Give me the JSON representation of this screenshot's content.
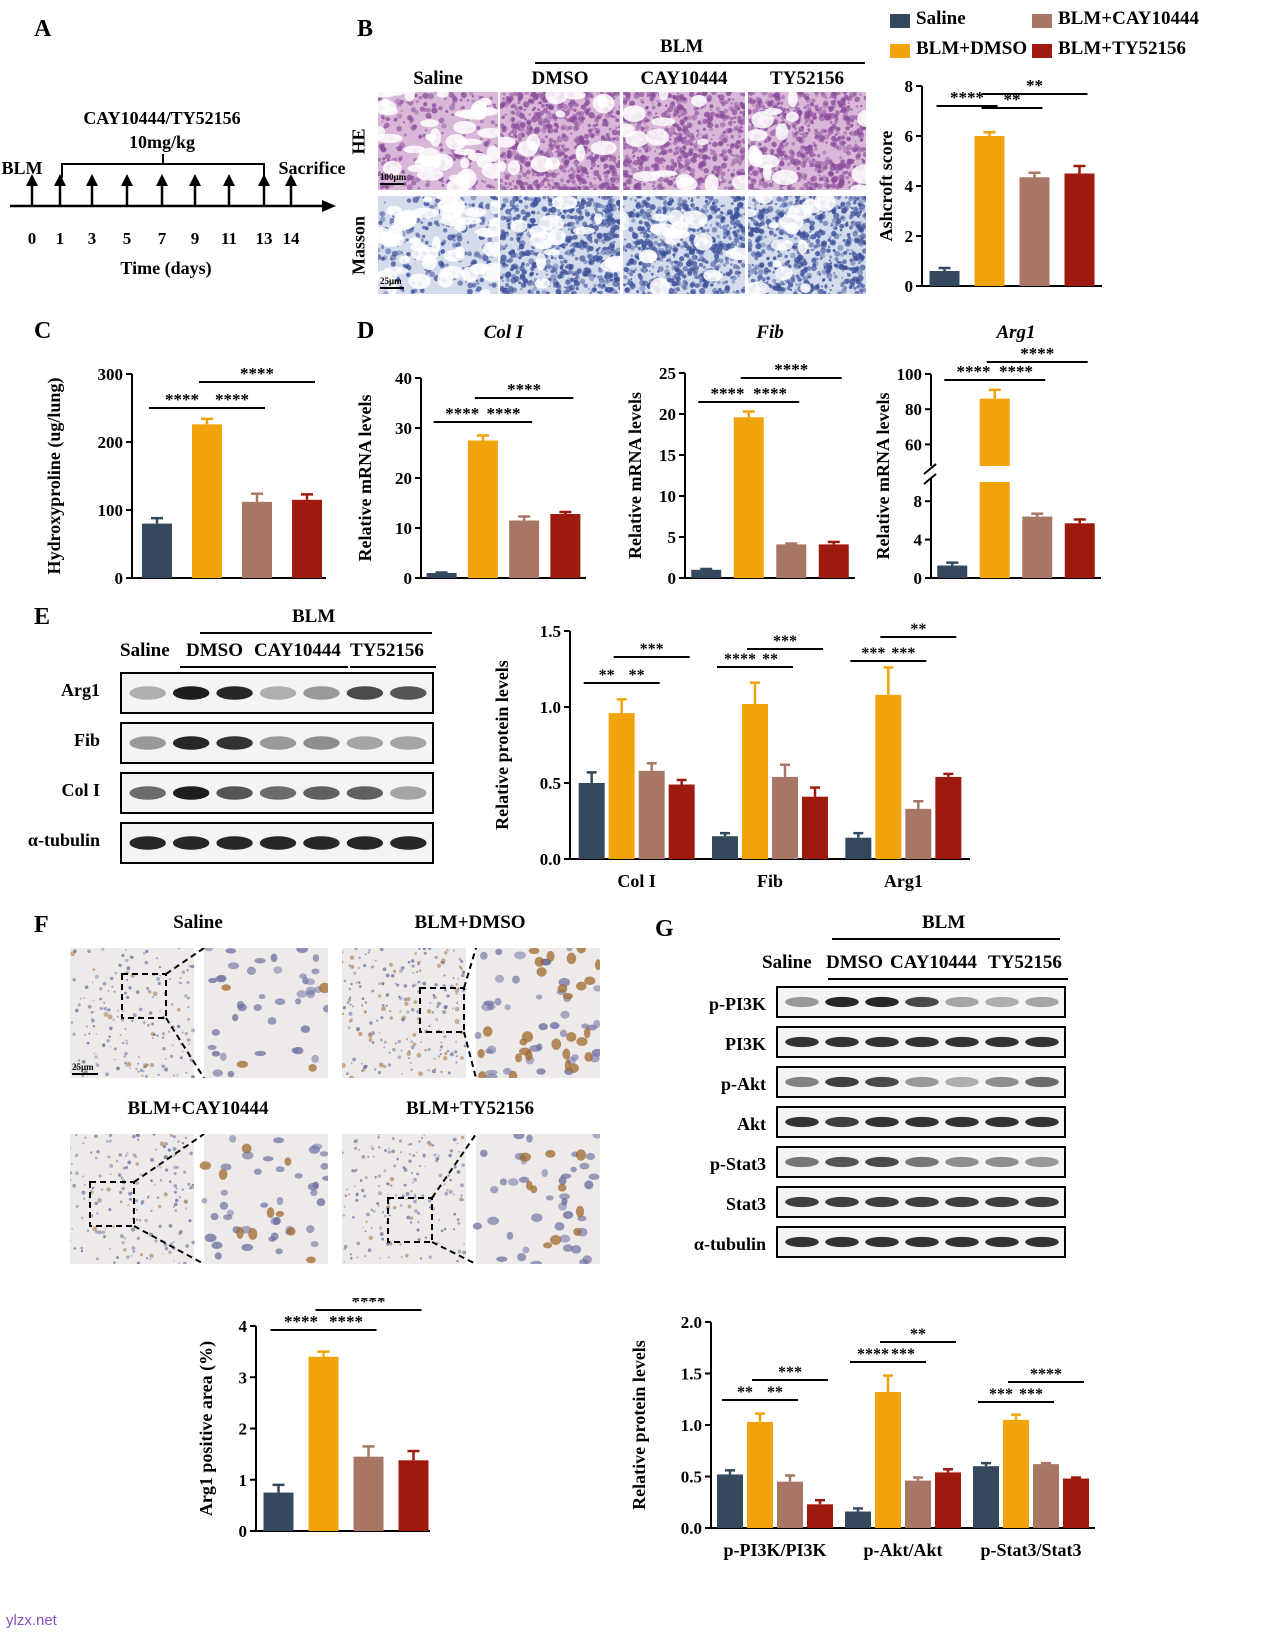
{
  "panel_letters": [
    "A",
    "B",
    "C",
    "D",
    "E",
    "F",
    "G"
  ],
  "colors": {
    "saline": "#34495e",
    "dmso": "#f0a30a",
    "cay": "#a87664",
    "ty": "#9e1a0f",
    "he_bg": "#d9b7d8",
    "he_tissue": "#8a4c9a",
    "masson_bg": "#d4dceb",
    "masson_tissue": "#3b4f9a",
    "ihc_bg": "#eeeaea",
    "ihc_cell": "#6b6fa0",
    "ihc_brown": "#a06a2c"
  },
  "legend": [
    {
      "label": "Saline",
      "color": "#34495e"
    },
    {
      "label": "BLM+CAY10444",
      "color": "#a87664"
    },
    {
      "label": "BLM+DMSO",
      "color": "#f0a30a"
    },
    {
      "label": "BLM+TY52156",
      "color": "#9e1a0f"
    }
  ],
  "timeline": {
    "drug_label": "CAY10444/TY52156",
    "dose_label": "10mg/kg",
    "start_label": "BLM",
    "end_label": "Sacrifice",
    "ticks": [
      "0",
      "1",
      "3",
      "5",
      "7",
      "9",
      "11",
      "13",
      "14"
    ],
    "axis_label": "Time (days)"
  },
  "histology": {
    "blm_label": "BLM",
    "columns": [
      "Saline",
      "DMSO",
      "CAY10444",
      "TY52156"
    ],
    "rows": [
      "HE",
      "Masson"
    ],
    "scalebars": [
      "100μm",
      "25μm"
    ]
  },
  "ihc": {
    "panels": [
      "Saline",
      "BLM+DMSO",
      "BLM+CAY10444",
      "BLM+TY52156"
    ],
    "scalebar": "25μm"
  },
  "blots": {
    "E": {
      "blm_label": "BLM",
      "groups": [
        "Saline",
        "DMSO",
        "CAY10444",
        "TY52156"
      ],
      "rows": [
        "Arg1",
        "Fib",
        "Col I",
        "α-tubulin"
      ]
    },
    "G": {
      "blm_label": "BLM",
      "groups": [
        "Saline",
        "DMSO",
        "CAY10444",
        "TY52156"
      ],
      "rows": [
        "p-PI3K",
        "PI3K",
        "p-Akt",
        "Akt",
        "p-Stat3",
        "Stat3",
        "α-tubulin"
      ]
    }
  },
  "chart_data": [
    {
      "id": "B",
      "type": "bar",
      "title": "",
      "ylabel": "Ashcroft score",
      "ylim": [
        0,
        8
      ],
      "yticks": [
        "0",
        "2",
        "4",
        "6",
        "8"
      ],
      "categories": [
        "Saline",
        "BLM+DMSO",
        "BLM+CAY10444",
        "BLM+TY52156"
      ],
      "values": [
        0.6,
        6.0,
        4.35,
        4.5
      ],
      "errors": [
        0.12,
        0.15,
        0.18,
        0.3
      ],
      "annotations": [
        "****",
        "**",
        "**"
      ]
    },
    {
      "id": "C",
      "type": "bar",
      "title": "",
      "ylabel": "Hydroxyproline (ug/lung)",
      "ylim": [
        0,
        300
      ],
      "yticks": [
        "0",
        "100",
        "200",
        "300"
      ],
      "categories": [
        "Saline",
        "BLM+DMSO",
        "BLM+CAY10444",
        "BLM+TY52156"
      ],
      "values": [
        80,
        226,
        112,
        115
      ],
      "errors": [
        8,
        8,
        12,
        8
      ],
      "annotations": [
        "****",
        "****",
        "****"
      ]
    },
    {
      "id": "D1",
      "type": "bar",
      "title": "Col I",
      "ylabel": "Relative mRNA levels",
      "ylim": [
        0,
        40
      ],
      "yticks": [
        "0",
        "10",
        "20",
        "30",
        "40"
      ],
      "categories": [
        "Saline",
        "BLM+DMSO",
        "BLM+CAY10444",
        "BLM+TY52156"
      ],
      "values": [
        1,
        27.5,
        11.5,
        12.8
      ],
      "errors": [
        0.1,
        1,
        0.8,
        0.4
      ],
      "annotations": [
        "****",
        "****",
        "****"
      ]
    },
    {
      "id": "D2",
      "type": "bar",
      "title": "Fib",
      "ylabel": "Relative mRNA levels",
      "ylim": [
        0,
        25
      ],
      "yticks": [
        "0",
        "5",
        "10",
        "15",
        "20",
        "25"
      ],
      "categories": [
        "Saline",
        "BLM+DMSO",
        "BLM+CAY10444",
        "BLM+TY52156"
      ],
      "values": [
        1,
        19.6,
        4.1,
        4.1
      ],
      "errors": [
        0.1,
        0.7,
        0.1,
        0.3
      ],
      "annotations": [
        "****",
        "****",
        "****"
      ]
    },
    {
      "id": "D3",
      "type": "bar",
      "title": "Arg1",
      "ylabel": "Relative mRNA levels",
      "ybreak": true,
      "yticks": [
        "0",
        "4",
        "8",
        "60",
        "80",
        "100"
      ],
      "categories": [
        "Saline",
        "BLM+DMSO",
        "BLM+CAY10444",
        "BLM+TY52156"
      ],
      "values": [
        1.3,
        86,
        6.4,
        5.7
      ],
      "errors": [
        0.3,
        5,
        0.3,
        0.4
      ],
      "annotations": [
        "****",
        "****",
        "****"
      ]
    },
    {
      "id": "E",
      "type": "bar",
      "title": "",
      "ylabel": "Relative protein levels",
      "ylim": [
        0,
        1.5
      ],
      "yticks": [
        "0.0",
        "0.5",
        "1.0",
        "1.5"
      ],
      "categories": [
        "Col I",
        "Fib",
        "Arg1"
      ],
      "series": [
        {
          "name": "Saline",
          "values": [
            0.5,
            0.15,
            0.14
          ],
          "errors": [
            0.07,
            0.02,
            0.03
          ]
        },
        {
          "name": "BLM+DMSO",
          "values": [
            0.96,
            1.02,
            1.08
          ],
          "errors": [
            0.09,
            0.14,
            0.18
          ]
        },
        {
          "name": "BLM+CAY10444",
          "values": [
            0.58,
            0.54,
            0.33
          ],
          "errors": [
            0.05,
            0.08,
            0.05
          ]
        },
        {
          "name": "BLM+TY52156",
          "values": [
            0.49,
            0.41,
            0.54
          ],
          "errors": [
            0.03,
            0.06,
            0.02
          ]
        }
      ],
      "annotations": [
        [
          "**",
          "**",
          "***"
        ],
        [
          "****",
          "**",
          "***"
        ],
        [
          "***",
          "***",
          "**"
        ]
      ]
    },
    {
      "id": "F",
      "type": "bar",
      "title": "",
      "ylabel": "Arg1 positive area (%)",
      "ylim": [
        0,
        4
      ],
      "yticks": [
        "0",
        "1",
        "2",
        "3",
        "4"
      ],
      "categories": [
        "Saline",
        "BLM+DMSO",
        "BLM+CAY10444",
        "BLM+TY52156"
      ],
      "values": [
        0.75,
        3.4,
        1.45,
        1.38
      ],
      "errors": [
        0.15,
        0.1,
        0.2,
        0.18
      ],
      "annotations": [
        "****",
        "****",
        "****"
      ]
    },
    {
      "id": "G",
      "type": "bar",
      "title": "",
      "ylabel": "Relative protein levels",
      "ylim": [
        0,
        2.0
      ],
      "yticks": [
        "0.0",
        "0.5",
        "1.0",
        "1.5",
        "2.0"
      ],
      "categories": [
        "p-PI3K/PI3K",
        "p-Akt/Akt",
        "p-Stat3/Stat3"
      ],
      "series": [
        {
          "name": "Saline",
          "values": [
            0.52,
            0.16,
            0.6
          ],
          "errors": [
            0.04,
            0.03,
            0.03
          ]
        },
        {
          "name": "BLM+DMSO",
          "values": [
            1.03,
            1.32,
            1.05
          ],
          "errors": [
            0.08,
            0.16,
            0.05
          ]
        },
        {
          "name": "BLM+CAY10444",
          "values": [
            0.45,
            0.46,
            0.62
          ],
          "errors": [
            0.06,
            0.03,
            0.01
          ]
        },
        {
          "name": "BLM+TY52156",
          "values": [
            0.23,
            0.54,
            0.48
          ],
          "errors": [
            0.04,
            0.03,
            0.01
          ]
        }
      ],
      "annotations": [
        [
          "**",
          "**",
          "***"
        ],
        [
          "****",
          "***",
          "**"
        ],
        [
          "***",
          "***",
          "****"
        ]
      ]
    }
  ],
  "watermark": "ylzx.net"
}
